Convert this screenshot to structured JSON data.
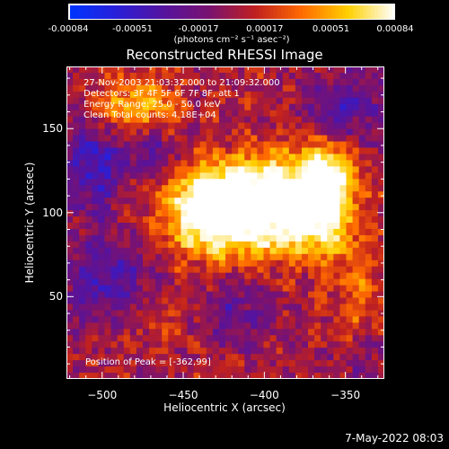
{
  "colorbar": {
    "tick_labels": [
      "-0.00084",
      "-0.00051",
      "-0.00017",
      "0.00017",
      "0.00051",
      "0.00084"
    ],
    "tick_values": [
      -0.00084,
      -0.00051,
      -0.00017,
      0.00017,
      0.00051,
      0.00084
    ],
    "units_label": "(photons cm⁻² s⁻¹ asec⁻²)",
    "colors": [
      "#0033ff",
      "#2a1fd8",
      "#55139e",
      "#7a1270",
      "#c0201f",
      "#ff6a00",
      "#ffd000",
      "#ffffff"
    ]
  },
  "chart_data": {
    "type": "heatmap",
    "title": "Reconstructed RHESSI Image",
    "xlabel": "Heliocentric X (arcsec)",
    "ylabel": "Heliocentric Y (arcsec)",
    "xlim": [
      -522,
      -326
    ],
    "ylim": [
      1,
      187
    ],
    "x_ticks": [
      -500,
      -450,
      -400,
      -350
    ],
    "x_tick_labels": [
      "−500",
      "−450",
      "−400",
      "−350"
    ],
    "y_ticks": [
      50,
      100,
      150
    ],
    "y_tick_labels": [
      "50",
      "100",
      "150"
    ],
    "value_range": [
      -0.00084,
      0.00084
    ],
    "peak_position": [
      -362,
      99
    ],
    "bright_regions": [
      {
        "x": -440,
        "y": 100,
        "sx": 18,
        "sy": 18,
        "amp": 0.00072
      },
      {
        "x": -420,
        "y": 112,
        "sx": 20,
        "sy": 14,
        "amp": 0.00062
      },
      {
        "x": -395,
        "y": 110,
        "sx": 16,
        "sy": 18,
        "amp": 0.00066
      },
      {
        "x": -365,
        "y": 103,
        "sx": 15,
        "sy": 20,
        "amp": 0.00084
      },
      {
        "x": -362,
        "y": 123,
        "sx": 12,
        "sy": 12,
        "amp": 0.00058
      },
      {
        "x": -408,
        "y": 86,
        "sx": 22,
        "sy": 12,
        "amp": 0.00045
      },
      {
        "x": -492,
        "y": 162,
        "sx": 14,
        "sy": 12,
        "amp": 0.00045
      },
      {
        "x": -468,
        "y": 162,
        "sx": 12,
        "sy": 14,
        "amp": 0.0004
      },
      {
        "x": -470,
        "y": 40,
        "sx": 26,
        "sy": 16,
        "amp": 0.00022
      },
      {
        "x": -340,
        "y": 45,
        "sx": 12,
        "sy": 30,
        "amp": 0.00028
      }
    ],
    "dark_regions": [
      {
        "x": -505,
        "y": 130,
        "sx": 12,
        "sy": 22,
        "amp": -0.00055
      },
      {
        "x": -495,
        "y": 55,
        "sx": 22,
        "sy": 18,
        "amp": -0.0005
      },
      {
        "x": -470,
        "y": 138,
        "sx": 12,
        "sy": 12,
        "amp": -0.00042
      },
      {
        "x": -420,
        "y": 40,
        "sx": 16,
        "sy": 14,
        "amp": -0.00035
      },
      {
        "x": -350,
        "y": 162,
        "sx": 16,
        "sy": 14,
        "amp": -0.0004
      },
      {
        "x": -335,
        "y": 10,
        "sx": 12,
        "sy": 18,
        "amp": -0.0003
      }
    ],
    "annotations": {
      "time": "27-Nov-2003 21:03:32.000 to 21:09:32.000",
      "detectors": "Detectors: 3F 4F 5F 6F 7F 8F, att 1",
      "energy": "Energy Range: 25.0 - 50.0 keV",
      "clean": "Clean    Total counts: 4.18E+04",
      "peak": "Position of Peak = [-362,99]"
    }
  },
  "footer": {
    "date": "7-May-2022 08:03"
  }
}
